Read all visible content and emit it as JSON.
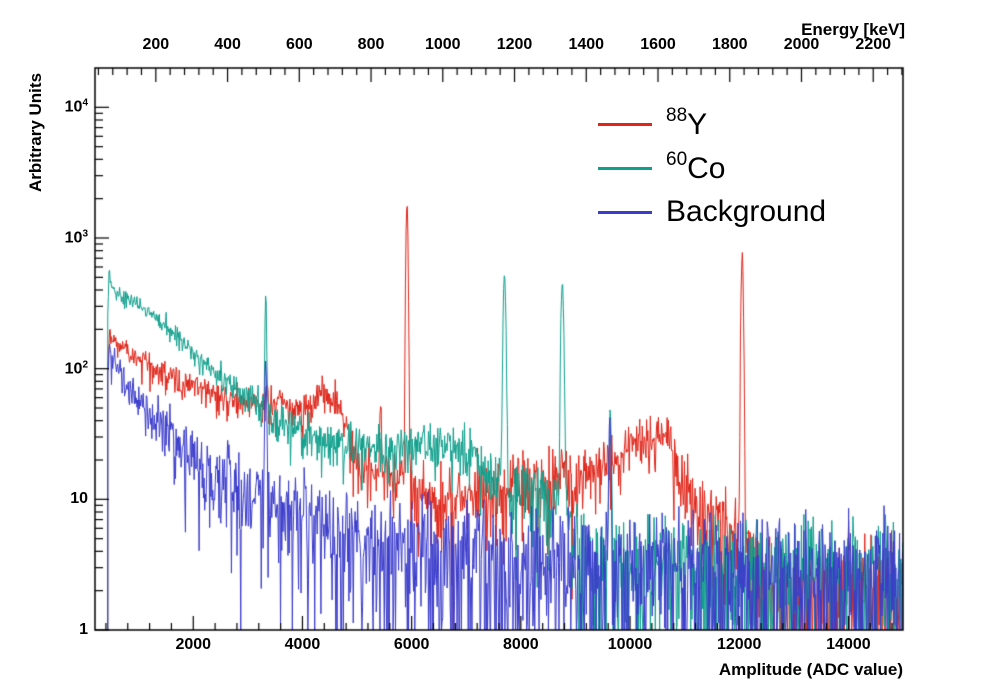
{
  "chart_data": {
    "type": "line",
    "style": "histogram-spectrum",
    "background": "#ffffff",
    "frame_color": "#000000",
    "y_axis": {
      "label": "Arbitrary Units",
      "scale": "log",
      "min": 1,
      "max": 20000,
      "tick_labels": [
        {
          "text": "1",
          "sup": "",
          "exp": 0
        },
        {
          "text": "10",
          "sup": "",
          "exp": 1
        },
        {
          "text": "10",
          "sup": "2",
          "exp": 2
        },
        {
          "text": "10",
          "sup": "3",
          "exp": 3
        },
        {
          "text": "10",
          "sup": "4",
          "exp": 4
        }
      ]
    },
    "x_axis": {
      "label": "Amplitude (ADC value)",
      "min": 200,
      "max": 15000,
      "major_ticks": [
        2000,
        4000,
        6000,
        8000,
        10000,
        12000,
        14000
      ],
      "minor_step": 400
    },
    "top_axis": {
      "label": "Energy [keV]",
      "kev_per_adc": 0.1522,
      "major_ticks": [
        200,
        400,
        600,
        800,
        1000,
        1200,
        1400,
        1600,
        1800,
        2000,
        2200
      ],
      "minor_step": 40
    },
    "series": [
      {
        "name": "Y88",
        "legend_sup": "88",
        "legend_text": "Y",
        "color": "#e02519",
        "seed": 42,
        "threshold": 430,
        "noise_scale": 1.25,
        "envelope": [
          [
            430,
            95
          ],
          [
            465,
            180
          ],
          [
            520,
            165
          ],
          [
            600,
            155
          ],
          [
            700,
            145
          ],
          [
            850,
            132
          ],
          [
            1000,
            120
          ],
          [
            1200,
            105
          ],
          [
            1400,
            95
          ],
          [
            1700,
            82
          ],
          [
            2000,
            71
          ],
          [
            2300,
            64
          ],
          [
            2600,
            59
          ],
          [
            3000,
            55
          ],
          [
            3400,
            51
          ],
          [
            3800,
            50
          ],
          [
            4100,
            53
          ],
          [
            4400,
            60
          ],
          [
            4650,
            58
          ],
          [
            4780,
            36
          ],
          [
            4950,
            24
          ],
          [
            5200,
            18
          ],
          [
            5500,
            16
          ],
          [
            5800,
            15
          ],
          [
            6000,
            12
          ],
          [
            6300,
            9.5
          ],
          [
            6700,
            9
          ],
          [
            7100,
            10
          ],
          [
            7600,
            12
          ],
          [
            8100,
            13
          ],
          [
            8600,
            14
          ],
          [
            9100,
            15.5
          ],
          [
            9500,
            18
          ],
          [
            9800,
            21
          ],
          [
            10100,
            27
          ],
          [
            10450,
            31
          ],
          [
            10700,
            27
          ],
          [
            10900,
            17
          ],
          [
            11100,
            10
          ],
          [
            11400,
            8
          ],
          [
            11800,
            7
          ],
          [
            12200,
            3
          ],
          [
            12500,
            2.2
          ],
          [
            13000,
            1.9
          ],
          [
            14000,
            1.7
          ],
          [
            15000,
            1.6
          ]
        ],
        "peaks": [
          [
            5915,
            1850,
            16
          ],
          [
            12055,
            750,
            17
          ],
          [
            5430,
            38,
            13
          ],
          [
            3350,
            16,
            12
          ]
        ]
      },
      {
        "name": "Co60",
        "legend_sup": "60",
        "legend_text": "Co",
        "color": "#0fa08d",
        "seed": 1337,
        "threshold": 430,
        "noise_scale": 1.2,
        "envelope": [
          [
            430,
            240
          ],
          [
            458,
            600
          ],
          [
            490,
            430
          ],
          [
            540,
            400
          ],
          [
            620,
            378
          ],
          [
            720,
            355
          ],
          [
            860,
            330
          ],
          [
            1000,
            303
          ],
          [
            1200,
            265
          ],
          [
            1400,
            228
          ],
          [
            1600,
            196
          ],
          [
            1800,
            162
          ],
          [
            2000,
            132
          ],
          [
            2200,
            110
          ],
          [
            2450,
            90
          ],
          [
            2700,
            73
          ],
          [
            3000,
            59
          ],
          [
            3300,
            48
          ],
          [
            3600,
            41
          ],
          [
            3900,
            35
          ],
          [
            4200,
            30
          ],
          [
            4500,
            27
          ],
          [
            4800,
            25
          ],
          [
            5200,
            23.5
          ],
          [
            5600,
            24.5
          ],
          [
            6000,
            25.5
          ],
          [
            6400,
            26
          ],
          [
            6800,
            24
          ],
          [
            7100,
            21.5
          ],
          [
            7400,
            17
          ],
          [
            7600,
            13
          ],
          [
            7900,
            10.5
          ],
          [
            8150,
            12
          ],
          [
            8400,
            11.5
          ],
          [
            8650,
            9
          ],
          [
            8900,
            5.5
          ],
          [
            9150,
            4
          ],
          [
            9450,
            3.3
          ],
          [
            10000,
            3
          ],
          [
            11000,
            2.9
          ],
          [
            12500,
            2.8
          ],
          [
            14000,
            2.7
          ],
          [
            15000,
            2.7
          ]
        ],
        "peaks": [
          [
            3328,
            300,
            13
          ],
          [
            7700,
            515,
            21
          ],
          [
            8760,
            455,
            21
          ],
          [
            9640,
            38,
            14
          ]
        ]
      },
      {
        "name": "Background",
        "legend_sup": "",
        "legend_text": "Background",
        "color": "#3b3ccb",
        "seed": 2024,
        "threshold": 430,
        "noise_scale": 1.45,
        "envelope": [
          [
            430,
            88
          ],
          [
            462,
            148
          ],
          [
            510,
            126
          ],
          [
            570,
            110
          ],
          [
            650,
            96
          ],
          [
            730,
            84
          ],
          [
            830,
            71
          ],
          [
            950,
            59
          ],
          [
            1100,
            48
          ],
          [
            1300,
            38
          ],
          [
            1500,
            31
          ],
          [
            1700,
            25.5
          ],
          [
            1900,
            21.5
          ],
          [
            2100,
            18.5
          ],
          [
            2400,
            15
          ],
          [
            2700,
            12.3
          ],
          [
            3000,
            10.3
          ],
          [
            3400,
            8.7
          ],
          [
            3800,
            7.4
          ],
          [
            4200,
            6.5
          ],
          [
            4700,
            5.6
          ],
          [
            5200,
            4.9
          ],
          [
            5800,
            4.3
          ],
          [
            6500,
            3.8
          ],
          [
            7200,
            3.4
          ],
          [
            8000,
            3.1
          ],
          [
            9000,
            2.8
          ],
          [
            10000,
            2.6
          ],
          [
            11000,
            2.45
          ],
          [
            12500,
            2.3
          ],
          [
            14000,
            2.25
          ],
          [
            15000,
            2.2
          ]
        ],
        "peaks": [
          [
            3328,
            80,
            13
          ],
          [
            9632,
            42,
            14
          ]
        ]
      }
    ]
  }
}
